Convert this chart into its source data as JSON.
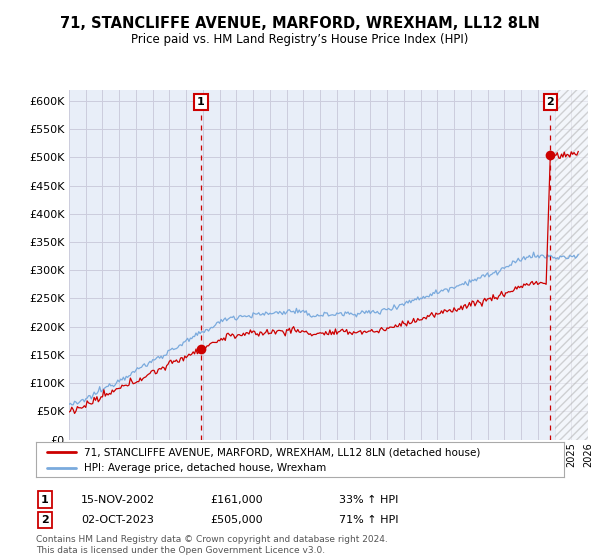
{
  "title": "71, STANCLIFFE AVENUE, MARFORD, WREXHAM, LL12 8LN",
  "subtitle": "Price paid vs. HM Land Registry’s House Price Index (HPI)",
  "ylim": [
    0,
    620000
  ],
  "yticks": [
    0,
    50000,
    100000,
    150000,
    200000,
    250000,
    300000,
    350000,
    400000,
    450000,
    500000,
    550000,
    600000
  ],
  "sale1_date": 2002.88,
  "sale1_price": 161000,
  "sale1_label": "1",
  "sale1_text": "15-NOV-2002",
  "sale1_amount": "£161,000",
  "sale1_hpi": "33% ↑ HPI",
  "sale2_date": 2023.75,
  "sale2_price": 505000,
  "sale2_label": "2",
  "sale2_text": "02-OCT-2023",
  "sale2_amount": "£505,000",
  "sale2_hpi": "71% ↑ HPI",
  "hpi_color": "#7aaadd",
  "property_color": "#cc0000",
  "vline_color": "#cc0000",
  "grid_color": "#ccccdd",
  "chart_bg": "#e8eef8",
  "background_color": "#ffffff",
  "legend_property": "71, STANCLIFFE AVENUE, MARFORD, WREXHAM, LL12 8LN (detached house)",
  "legend_hpi": "HPI: Average price, detached house, Wrexham",
  "footer": "Contains HM Land Registry data © Crown copyright and database right 2024.\nThis data is licensed under the Open Government Licence v3.0.",
  "xstart": 1995,
  "xend": 2026
}
